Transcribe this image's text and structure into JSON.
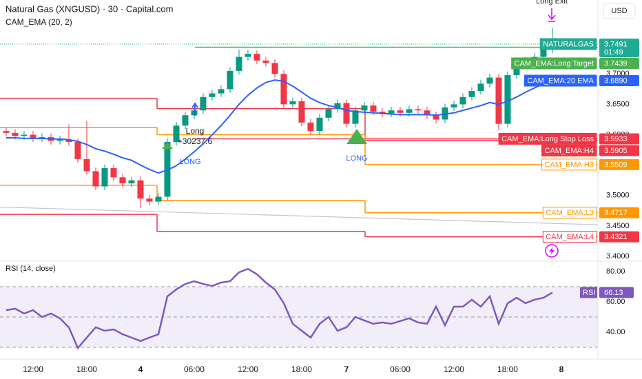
{
  "header": {
    "title": "Natural Gas (XNGUSD) · 30 · Capital.com",
    "indicator": "CAM_EMA (20, 2)",
    "currency": "USD"
  },
  "chart_data": [
    {
      "type": "candlestick",
      "xlim": [
        -0.69,
        66.08
      ],
      "xticks": [
        {
          "value": 3,
          "label": "12:00"
        },
        {
          "value": 9,
          "label": "18:00"
        },
        {
          "value": 15,
          "label": "4"
        },
        {
          "value": 21,
          "label": "06:00"
        },
        {
          "value": 27,
          "label": "12:00"
        },
        {
          "value": 33,
          "label": "18:00"
        },
        {
          "value": 38,
          "label": "7"
        },
        {
          "value": 44,
          "label": "06:00"
        },
        {
          "value": 50,
          "label": "12:00"
        },
        {
          "value": 56,
          "label": "18:00"
        },
        {
          "value": 62,
          "label": "8"
        }
      ],
      "ylim": [
        3.3932,
        3.8216
      ],
      "yticks": [
        {
          "value": 3.4,
          "label": "3.4000"
        },
        {
          "value": 3.45,
          "label": "3.4500"
        },
        {
          "value": 3.5,
          "label": "3.5000"
        },
        {
          "value": 3.55,
          "label": "3.5500"
        },
        {
          "value": 3.6,
          "label": "3.6000"
        },
        {
          "value": 3.65,
          "label": "3.6500"
        },
        {
          "value": 3.7,
          "label": "3.7000"
        }
      ],
      "up_color": "#089981",
      "down_color": "#f23645",
      "open": [
        3.606,
        3.603,
        3.598,
        3.6,
        3.594,
        3.596,
        3.59,
        3.592,
        3.588,
        3.56,
        3.54,
        3.515,
        3.545,
        3.53,
        3.52,
        3.525,
        3.495,
        3.49,
        3.498,
        3.588,
        3.615,
        3.632,
        3.64,
        3.662,
        3.668,
        3.675,
        3.705,
        3.728,
        3.733,
        3.722,
        3.718,
        3.7,
        3.65,
        3.655,
        3.62,
        3.606,
        3.628,
        3.642,
        3.652,
        3.618,
        3.64,
        3.648,
        3.638,
        3.635,
        3.64,
        3.636,
        3.642,
        3.64,
        3.632,
        3.625,
        3.645,
        3.65,
        3.662,
        3.672,
        3.684,
        3.694,
        3.618,
        3.698,
        3.716,
        3.722,
        3.728,
        3.74
      ],
      "high": [
        3.612,
        3.609,
        3.606,
        3.606,
        3.602,
        3.602,
        3.598,
        3.617,
        3.594,
        3.623,
        3.546,
        3.551,
        3.551,
        3.536,
        3.531,
        3.531,
        3.501,
        3.504,
        3.594,
        3.621,
        3.638,
        3.646,
        3.668,
        3.674,
        3.681,
        3.711,
        3.74,
        3.739,
        3.739,
        3.728,
        3.724,
        3.706,
        3.661,
        3.661,
        3.626,
        3.634,
        3.648,
        3.658,
        3.658,
        3.646,
        3.654,
        3.654,
        3.644,
        3.646,
        3.646,
        3.648,
        3.648,
        3.646,
        3.638,
        3.651,
        3.656,
        3.668,
        3.678,
        3.69,
        3.7,
        3.7,
        3.704,
        3.722,
        3.728,
        3.734,
        3.746,
        3.776
      ],
      "low": [
        3.597,
        3.592,
        3.592,
        3.588,
        3.588,
        3.584,
        3.584,
        3.582,
        3.554,
        3.534,
        3.509,
        3.509,
        3.524,
        3.514,
        3.514,
        3.48,
        3.484,
        3.484,
        3.492,
        3.582,
        3.609,
        3.626,
        3.634,
        3.656,
        3.662,
        3.669,
        3.699,
        3.722,
        3.716,
        3.712,
        3.694,
        3.644,
        3.644,
        3.614,
        3.6,
        3.6,
        3.622,
        3.636,
        3.612,
        3.612,
        3.634,
        3.632,
        3.629,
        3.629,
        3.63,
        3.63,
        3.634,
        3.626,
        3.619,
        3.619,
        3.639,
        3.644,
        3.656,
        3.666,
        3.678,
        3.608,
        3.612,
        3.692,
        3.71,
        3.716,
        3.722,
        3.734
      ],
      "close": [
        3.603,
        3.598,
        3.6,
        3.594,
        3.596,
        3.59,
        3.592,
        3.588,
        3.56,
        3.54,
        3.515,
        3.545,
        3.53,
        3.52,
        3.525,
        3.495,
        3.49,
        3.498,
        3.588,
        3.615,
        3.632,
        3.64,
        3.662,
        3.668,
        3.675,
        3.705,
        3.728,
        3.733,
        3.722,
        3.718,
        3.7,
        3.65,
        3.655,
        3.62,
        3.606,
        3.628,
        3.642,
        3.652,
        3.618,
        3.64,
        3.648,
        3.638,
        3.635,
        3.64,
        3.636,
        3.642,
        3.64,
        3.632,
        3.625,
        3.645,
        3.65,
        3.662,
        3.672,
        3.684,
        3.694,
        3.618,
        3.698,
        3.716,
        3.722,
        3.728,
        3.74,
        3.7491
      ],
      "last_price": {
        "name": "NATURALGAS",
        "countdown": "01:49",
        "color": "#22ab94"
      },
      "series": [
        {
          "name": "CAM_EMA:20 EMA",
          "color": "#2962ff",
          "tag_label": "3.6890",
          "values": [
            3.595,
            3.595,
            3.594,
            3.594,
            3.594,
            3.593,
            3.593,
            3.592,
            3.589,
            3.584,
            3.577,
            3.573,
            3.568,
            3.562,
            3.558,
            3.55,
            3.543,
            3.537,
            3.542,
            3.549,
            3.56,
            3.572,
            3.585,
            3.6,
            3.615,
            3.632,
            3.65,
            3.665,
            3.677,
            3.686,
            3.69,
            3.688,
            3.68,
            3.67,
            3.66,
            3.653,
            3.648,
            3.645,
            3.64,
            3.638,
            3.637,
            3.636,
            3.635,
            3.634,
            3.633,
            3.633,
            3.633,
            3.633,
            3.632,
            3.634,
            3.636,
            3.64,
            3.644,
            3.648,
            3.653,
            3.65,
            3.655,
            3.662,
            3.67,
            3.677,
            3.684,
            3.689
          ]
        }
      ],
      "levels": [
        {
          "name": "CAM_EMA:Long Target",
          "color": "#4caf50",
          "values": [
            null,
            3.7439
          ]
        },
        {
          "name": "CAM_EMA:Long Stop Loss",
          "color": "#f23645",
          "values": [
            null,
            3.5933
          ]
        },
        {
          "name": "CAM_EMA:H4",
          "color": "#f23645",
          "values": [
            3.66,
            3.643,
            3.5905
          ]
        },
        {
          "name": "CAM_EMA:H3",
          "color": "#ff9800",
          "outline": true,
          "values": [
            3.612,
            3.6,
            3.5509
          ]
        },
        {
          "name": "CAM_EMA:L3",
          "color": "#ff9800",
          "outline": true,
          "values": [
            3.517,
            3.492,
            3.4717
          ]
        },
        {
          "name": "CAM_EMA:L4",
          "color": "#f23645",
          "outline": true,
          "values": [
            3.469,
            3.441,
            3.4321
          ]
        }
      ],
      "trend_line": {
        "color": "#c3c6ce",
        "values": [
          3.481,
          3.452
        ]
      },
      "signals": [
        {
          "entry": "Long",
          "profit": "+30237.6",
          "label": "LONG"
        },
        {
          "label": "LONG"
        }
      ],
      "exit": "Long Exit"
    },
    {
      "type": "line",
      "title": "RSI (14, close)",
      "ylim": [
        22.7,
        86.4
      ],
      "yticks": [
        {
          "value": 40,
          "label": "40.00"
        },
        {
          "value": 60,
          "label": "60.00"
        },
        {
          "value": 80,
          "label": "80.00"
        }
      ],
      "bands": [
        70,
        50,
        30
      ],
      "series": [
        {
          "name": "RSI",
          "color": "#7e57c2",
          "values": [
            54.5,
            55.5,
            52.3,
            54.5,
            50.0,
            52.3,
            49.1,
            43.2,
            29.5,
            36.4,
            43.2,
            40.9,
            41.8,
            38.6,
            36.4,
            34.1,
            36.4,
            38.6,
            63.6,
            68.2,
            71.8,
            73.6,
            71.8,
            70.5,
            72.7,
            73.6,
            79.5,
            81.8,
            78.2,
            72.7,
            68.2,
            59.1,
            45.5,
            40.9,
            36.4,
            45.5,
            50.0,
            40.9,
            43.2,
            50.0,
            47.7,
            45.5,
            46.4,
            45.5,
            47.3,
            49.1,
            46.4,
            45.5,
            56.8,
            44.5,
            56.8,
            56.8,
            61.4,
            56.8,
            63.6,
            45.5,
            59.1,
            62.7,
            59.1,
            61.4,
            62.7,
            66.13
          ]
        }
      ]
    }
  ]
}
